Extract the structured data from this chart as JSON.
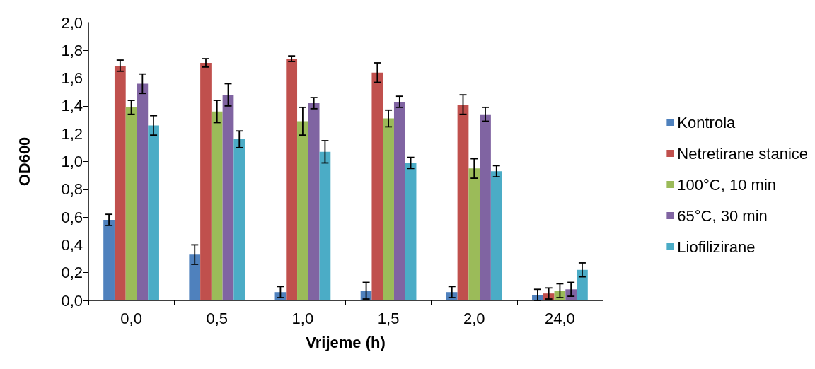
{
  "chart_data": {
    "type": "bar",
    "xlabel": "Vrijeme (h)",
    "ylabel": "OD600",
    "categories": [
      "0,0",
      "0,5",
      "1,0",
      "1,5",
      "2,0",
      "24,0"
    ],
    "ylim": [
      0,
      2
    ],
    "yticks": [
      {
        "value": 0,
        "label": "0,0"
      },
      {
        "value": 0.2,
        "label": "0,2"
      },
      {
        "value": 0.4,
        "label": "0,4"
      },
      {
        "value": 0.6,
        "label": "0,6"
      },
      {
        "value": 0.8,
        "label": "0,8"
      },
      {
        "value": 1,
        "label": "1,0"
      },
      {
        "value": 1.2,
        "label": "1,2"
      },
      {
        "value": 1.4,
        "label": "1,4"
      },
      {
        "value": 1.6,
        "label": "1,6"
      },
      {
        "value": 1.8,
        "label": "1,8"
      },
      {
        "value": 2,
        "label": "2,0"
      }
    ],
    "grid": false,
    "legend": "right",
    "series": [
      {
        "name": "Kontrola",
        "color": "#4f81bd",
        "values": [
          0.58,
          0.33,
          0.06,
          0.07,
          0.06,
          0.04
        ],
        "errors": [
          0.04,
          0.07,
          0.04,
          0.06,
          0.04,
          0.04
        ]
      },
      {
        "name": "Netretirane stanice",
        "color": "#c0504d",
        "values": [
          1.69,
          1.71,
          1.74,
          1.64,
          1.41,
          0.05
        ],
        "errors": [
          0.04,
          0.03,
          0.02,
          0.07,
          0.07,
          0.04
        ]
      },
      {
        "name": "100°C, 10 min",
        "color": "#9bbb59",
        "values": [
          1.39,
          1.36,
          1.29,
          1.31,
          0.95,
          0.07
        ],
        "errors": [
          0.05,
          0.08,
          0.1,
          0.06,
          0.07,
          0.05
        ]
      },
      {
        "name": "65°C, 30 min",
        "color": "#8064a2",
        "values": [
          1.56,
          1.48,
          1.42,
          1.43,
          1.34,
          0.08
        ],
        "errors": [
          0.07,
          0.08,
          0.04,
          0.04,
          0.05,
          0.05
        ]
      },
      {
        "name": "Liofilizirane",
        "color": "#4bacc6",
        "values": [
          1.26,
          1.16,
          1.07,
          0.99,
          0.93,
          0.22
        ],
        "errors": [
          0.07,
          0.06,
          0.08,
          0.04,
          0.04,
          0.05
        ]
      }
    ]
  }
}
